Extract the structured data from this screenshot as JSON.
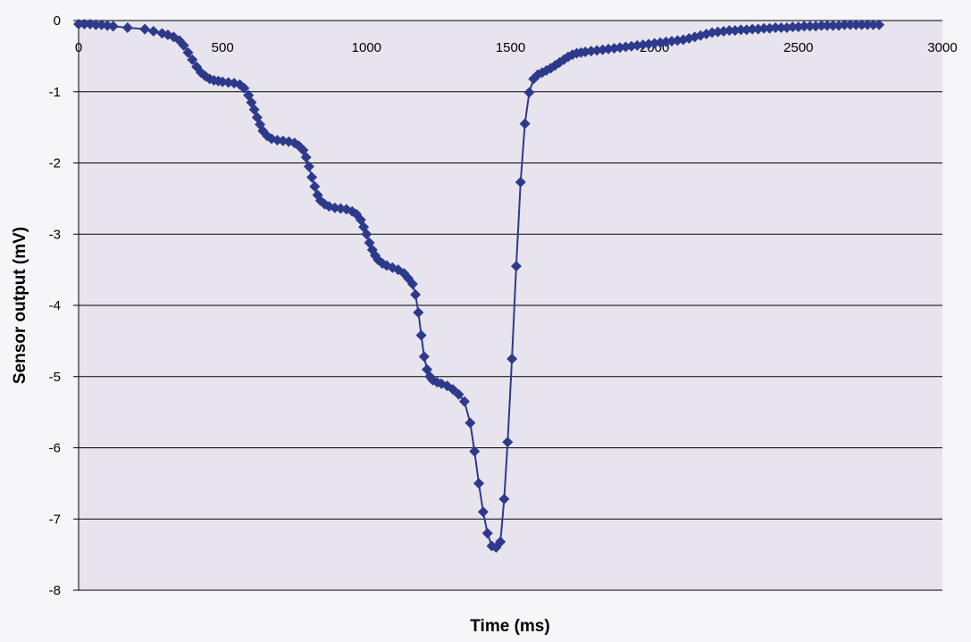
{
  "chart_data": {
    "type": "line",
    "title": "",
    "xlabel": "Time (ms)",
    "ylabel": "Sensor output (mV)",
    "xlim": [
      0,
      3000
    ],
    "ylim": [
      -8,
      0
    ],
    "x_ticks": [
      "0",
      "500",
      "1000",
      "1500",
      "2000",
      "2500",
      "3000"
    ],
    "y_ticks": [
      "0",
      "-1",
      "-2",
      "-3",
      "-4",
      "-5",
      "-6",
      "-7",
      "-8"
    ],
    "grid": "horizontal",
    "legend": "none",
    "colors": {
      "series": "#2d3a8c",
      "plot_background": "#e8e4ee",
      "gridline": "#000000"
    },
    "series": [
      {
        "marker": "diamond",
        "x": [
          0,
          20,
          40,
          60,
          80,
          100,
          120,
          170,
          230,
          260,
          290,
          310,
          330,
          350,
          365,
          380,
          395,
          410,
          425,
          440,
          455,
          470,
          485,
          500,
          520,
          540,
          560,
          575,
          590,
          600,
          610,
          620,
          630,
          640,
          655,
          670,
          690,
          710,
          730,
          750,
          765,
          780,
          790,
          800,
          810,
          820,
          830,
          840,
          855,
          870,
          890,
          910,
          930,
          950,
          965,
          980,
          990,
          1000,
          1010,
          1020,
          1030,
          1040,
          1055,
          1070,
          1090,
          1110,
          1130,
          1145,
          1160,
          1170,
          1180,
          1190,
          1200,
          1210,
          1220,
          1230,
          1245,
          1260,
          1280,
          1300,
          1320,
          1340,
          1360,
          1375,
          1390,
          1405,
          1420,
          1435,
          1450,
          1465,
          1478,
          1490,
          1505,
          1520,
          1535,
          1550,
          1565,
          1580,
          1595,
          1610,
          1625,
          1640,
          1655,
          1670,
          1685,
          1700,
          1715,
          1730,
          1745,
          1760,
          1780,
          1800,
          1820,
          1840,
          1860,
          1880,
          1900,
          1920,
          1940,
          1960,
          1980,
          2000,
          2020,
          2040,
          2060,
          2080,
          2100,
          2120,
          2140,
          2160,
          2180,
          2200,
          2220,
          2240,
          2260,
          2280,
          2300,
          2320,
          2340,
          2360,
          2380,
          2400,
          2420,
          2440,
          2460,
          2480,
          2500,
          2520,
          2540,
          2560,
          2580,
          2600,
          2620,
          2640,
          2660,
          2680,
          2700,
          2720,
          2740,
          2760,
          2780
        ],
        "y": [
          -0.05,
          -0.05,
          -0.05,
          -0.06,
          -0.06,
          -0.07,
          -0.08,
          -0.1,
          -0.12,
          -0.15,
          -0.18,
          -0.2,
          -0.23,
          -0.28,
          -0.35,
          -0.45,
          -0.55,
          -0.65,
          -0.73,
          -0.78,
          -0.82,
          -0.84,
          -0.85,
          -0.86,
          -0.87,
          -0.88,
          -0.9,
          -0.95,
          -1.05,
          -1.15,
          -1.25,
          -1.36,
          -1.46,
          -1.55,
          -1.62,
          -1.66,
          -1.68,
          -1.69,
          -1.7,
          -1.72,
          -1.76,
          -1.82,
          -1.92,
          -2.05,
          -2.2,
          -2.33,
          -2.45,
          -2.53,
          -2.58,
          -2.61,
          -2.63,
          -2.64,
          -2.65,
          -2.68,
          -2.72,
          -2.8,
          -2.9,
          -3.0,
          -3.12,
          -3.22,
          -3.3,
          -3.36,
          -3.41,
          -3.44,
          -3.47,
          -3.5,
          -3.55,
          -3.62,
          -3.7,
          -3.85,
          -4.1,
          -4.42,
          -4.72,
          -4.9,
          -5.0,
          -5.05,
          -5.08,
          -5.1,
          -5.13,
          -5.18,
          -5.25,
          -5.35,
          -5.65,
          -6.05,
          -6.5,
          -6.9,
          -7.2,
          -7.38,
          -7.4,
          -7.32,
          -6.72,
          -5.92,
          -4.75,
          -3.45,
          -2.27,
          -1.45,
          -1.01,
          -0.82,
          -0.76,
          -0.73,
          -0.7,
          -0.67,
          -0.63,
          -0.59,
          -0.55,
          -0.51,
          -0.48,
          -0.46,
          -0.45,
          -0.44,
          -0.43,
          -0.42,
          -0.41,
          -0.4,
          -0.39,
          -0.38,
          -0.37,
          -0.36,
          -0.35,
          -0.34,
          -0.33,
          -0.32,
          -0.31,
          -0.3,
          -0.29,
          -0.28,
          -0.27,
          -0.25,
          -0.23,
          -0.21,
          -0.19,
          -0.17,
          -0.16,
          -0.15,
          -0.14,
          -0.14,
          -0.13,
          -0.13,
          -0.12,
          -0.12,
          -0.11,
          -0.11,
          -0.1,
          -0.1,
          -0.1,
          -0.09,
          -0.09,
          -0.08,
          -0.08,
          -0.08,
          -0.07,
          -0.07,
          -0.07,
          -0.07,
          -0.06,
          -0.06,
          -0.06,
          -0.06,
          -0.06,
          -0.06,
          -0.06
        ]
      }
    ]
  }
}
